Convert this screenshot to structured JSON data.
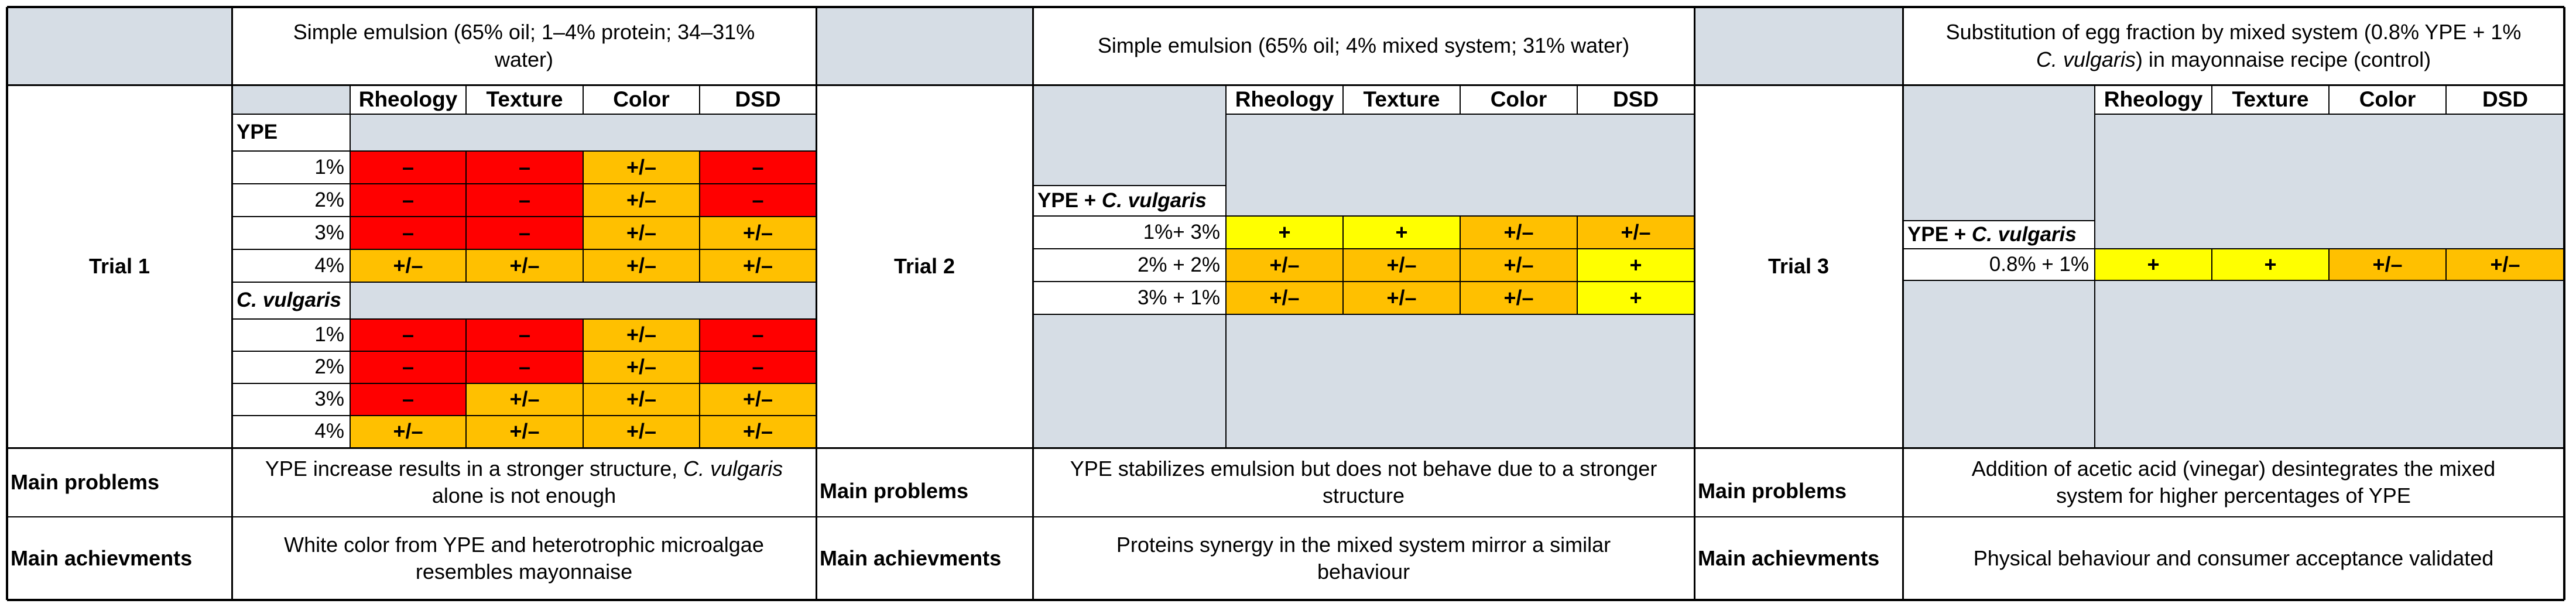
{
  "colors": {
    "header_bg": "#d6dde5",
    "negative": "#ff0000",
    "neutral": "#ffc000",
    "positive": "#ffff00",
    "border": "#000000"
  },
  "icons": [],
  "table": {
    "column_headers": [
      "Rheology",
      "Texture",
      "Color",
      "DSD"
    ],
    "row_labels": {
      "main_problems": "Main problems",
      "main_achievements_1": "Main achievments",
      "main_achievements_2": "Main achievments",
      "main_achievements_3": "Main achievments"
    },
    "trials": [
      {
        "label": "Trial 1",
        "header": "Simple emulsion (65% oil; 1–4% protein; 34–31% water)",
        "groups": [
          {
            "name": "YPE",
            "rows": [
              {
                "label": "1%",
                "values": [
                  "–",
                  "–",
                  "+/–",
                  "–"
                ],
                "colors": [
                  "#ff0000",
                  "#ff0000",
                  "#ffc000",
                  "#ff0000"
                ]
              },
              {
                "label": "2%",
                "values": [
                  "–",
                  "–",
                  "+/–",
                  "–"
                ],
                "colors": [
                  "#ff0000",
                  "#ff0000",
                  "#ffc000",
                  "#ff0000"
                ]
              },
              {
                "label": "3%",
                "values": [
                  "–",
                  "–",
                  "+/–",
                  "+/–"
                ],
                "colors": [
                  "#ff0000",
                  "#ff0000",
                  "#ffc000",
                  "#ffc000"
                ]
              },
              {
                "label": "4%",
                "values": [
                  "+/–",
                  "+/–",
                  "+/–",
                  "+/–"
                ],
                "colors": [
                  "#ffc000",
                  "#ffc000",
                  "#ffc000",
                  "#ffc000"
                ]
              }
            ]
          },
          {
            "name": "C. vulgaris",
            "rows": [
              {
                "label": "1%",
                "values": [
                  "–",
                  "–",
                  "+/–",
                  "–"
                ],
                "colors": [
                  "#ff0000",
                  "#ff0000",
                  "#ffc000",
                  "#ff0000"
                ]
              },
              {
                "label": "2%",
                "values": [
                  "–",
                  "–",
                  "+/–",
                  "–"
                ],
                "colors": [
                  "#ff0000",
                  "#ff0000",
                  "#ffc000",
                  "#ff0000"
                ]
              },
              {
                "label": "3%",
                "values": [
                  "–",
                  "+/–",
                  "+/–",
                  "+/–"
                ],
                "colors": [
                  "#ff0000",
                  "#ffc000",
                  "#ffc000",
                  "#ffc000"
                ]
              },
              {
                "label": "4%",
                "values": [
                  "+/–",
                  "+/–",
                  "+/–",
                  "+/–"
                ],
                "colors": [
                  "#ffc000",
                  "#ffc000",
                  "#ffc000",
                  "#ffc000"
                ]
              }
            ]
          }
        ],
        "main_problems": "YPE increase results in a stronger structure, C. vulgaris alone is not enough",
        "main_achievements": "White color from YPE and heterotrophic microalgae resembles mayonnaise"
      },
      {
        "label": "Trial 2",
        "header": "Simple emulsion (65% oil; 4% mixed system; 31% water)",
        "group_prefix": "YPE + ",
        "group_species": "C. vulgaris",
        "rows": [
          {
            "label": "1%+ 3%",
            "values": [
              "+",
              "+",
              "+/–",
              "+/–"
            ],
            "colors": [
              "#ffff00",
              "#ffff00",
              "#ffc000",
              "#ffc000"
            ]
          },
          {
            "label": "2% + 2%",
            "values": [
              "+/–",
              "+/–",
              "+/–",
              "+"
            ],
            "colors": [
              "#ffc000",
              "#ffc000",
              "#ffc000",
              "#ffff00"
            ]
          },
          {
            "label": "3% + 1%",
            "values": [
              "+/–",
              "+/–",
              "+/–",
              "+"
            ],
            "colors": [
              "#ffc000",
              "#ffc000",
              "#ffc000",
              "#ffff00"
            ]
          }
        ],
        "main_problems": "YPE stabilizes emulsion but does not behave due to a stronger structure",
        "main_achievements": "Proteins synergy in the mixed system mirror a similar behaviour"
      },
      {
        "label": "Trial 3",
        "header_line1": "Substitution of egg fraction by mixed system (0.8% YPE + 1%",
        "header_species": "C. vulgaris",
        "header_line2_rest": ") in mayonnaise recipe (control)",
        "group_prefix": "YPE + ",
        "group_species": "C. vulgaris",
        "rows": [
          {
            "label": "0.8% + 1%",
            "values": [
              "+",
              "+",
              "+/–",
              "+/–"
            ],
            "colors": [
              "#ffff00",
              "#ffff00",
              "#ffc000",
              "#ffc000"
            ]
          }
        ],
        "main_problems": "Addition of acetic acid (vinegar) desintegrates the mixed system for higher percentages of YPE",
        "main_achievements": "Physical behaviour and consumer acceptance validated"
      }
    ]
  }
}
